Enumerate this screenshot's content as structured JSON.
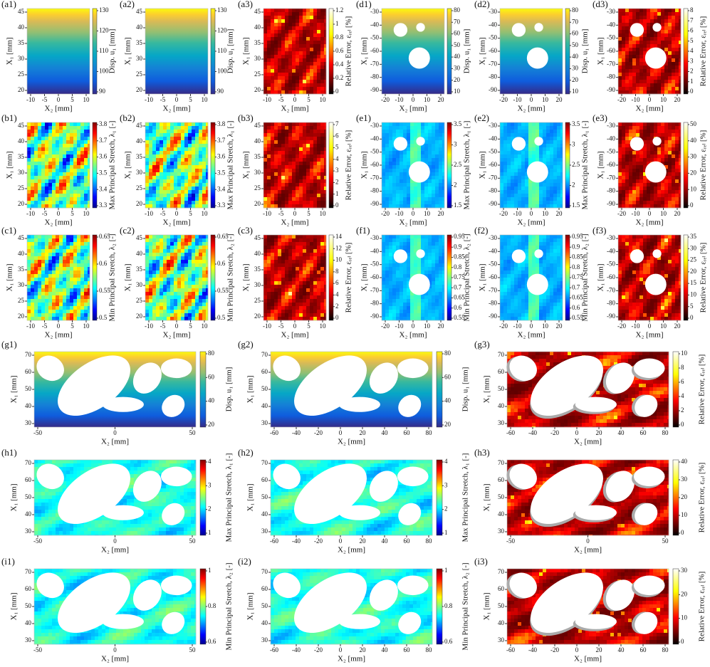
{
  "panels": [
    {
      "label": "(a1)",
      "xlabel": "X₂ [mm]",
      "ylabel": "X₁ [mm]",
      "xticks": [
        -10,
        -5,
        0,
        5,
        10
      ],
      "yticks": [
        20,
        25,
        30,
        35,
        40,
        45
      ],
      "colorbar": {
        "label": "Disp. u₁ [mm]",
        "ticks": [
          90,
          100,
          110,
          120,
          130
        ]
      }
    },
    {
      "label": "(a2)",
      "xlabel": "X₂ [mm]",
      "ylabel": "X₁ [mm]",
      "xticks": [
        -10,
        -5,
        0,
        5,
        10
      ],
      "yticks": [
        20,
        25,
        30,
        35,
        40,
        45
      ],
      "colorbar": {
        "label": "Disp. u₁ [mm]",
        "ticks": [
          90,
          100,
          110,
          120,
          130
        ]
      }
    },
    {
      "label": "(a3)",
      "xlabel": "X₂ [mm]",
      "ylabel": "X₁ [mm]",
      "xticks": [
        -10,
        -5,
        0,
        5,
        10
      ],
      "yticks": [
        20,
        25,
        30,
        35,
        40,
        45
      ],
      "colorbar": {
        "label": "Relative Error, εᵣₑₗ [%]",
        "ticks": [
          0,
          0.2,
          0.4,
          0.6,
          0.8,
          1,
          1.2
        ]
      }
    },
    {
      "label": "(d1)",
      "xlabel": "X₂ [mm]",
      "ylabel": "X₁ [mm]",
      "xticks": [
        -20,
        -10,
        0,
        10,
        20
      ],
      "yticks": [
        -90,
        -80,
        -70,
        -60,
        -50,
        -40,
        -30
      ],
      "colorbar": {
        "label": "Disp. u₁ [mm]",
        "ticks": [
          10,
          20,
          30,
          40,
          50,
          60,
          70,
          80
        ]
      }
    },
    {
      "label": "(d2)",
      "xlabel": "X₂ [mm]",
      "ylabel": "X₁ [mm]",
      "xticks": [
        -20,
        -10,
        0,
        10,
        20
      ],
      "yticks": [
        -90,
        -80,
        -70,
        -60,
        -50,
        -40,
        -30
      ],
      "colorbar": {
        "label": "Disp. u₁ [mm]",
        "ticks": [
          10,
          20,
          30,
          40,
          50,
          60,
          70,
          80
        ]
      }
    },
    {
      "label": "(d3)",
      "xlabel": "X₂ [mm]",
      "ylabel": "X₁ [mm]",
      "xticks": [
        -20,
        -10,
        0,
        10,
        20
      ],
      "yticks": [
        -90,
        -80,
        -70,
        -60,
        -50,
        -40,
        -30
      ],
      "colorbar": {
        "label": "Relative Error, εᵣₑₗ [%]",
        "ticks": [
          0,
          1,
          2,
          3,
          4,
          5,
          6,
          7,
          8
        ]
      }
    },
    {
      "label": "(b1)",
      "xlabel": "X₂ [mm]",
      "ylabel": "X₁ [mm]",
      "xticks": [
        -10,
        -5,
        0,
        5,
        10
      ],
      "yticks": [
        20,
        25,
        30,
        35,
        40,
        45
      ],
      "colorbar": {
        "label": "Max Principal Stretch, λ₁ [-]",
        "ticks": [
          3.3,
          3.4,
          3.5,
          3.6,
          3.7,
          3.8
        ]
      }
    },
    {
      "label": "(b2)",
      "xlabel": "X₂ [mm]",
      "ylabel": "X₁ [mm]",
      "xticks": [
        -10,
        -5,
        0,
        5,
        10
      ],
      "yticks": [
        20,
        25,
        30,
        35,
        40,
        45
      ],
      "colorbar": {
        "label": "Max Principal Stretch, λ₁ [-]",
        "ticks": [
          3.3,
          3.4,
          3.5,
          3.6,
          3.7,
          3.8
        ]
      }
    },
    {
      "label": "(b3)",
      "xlabel": "X₂ [mm]",
      "ylabel": "X₁ [mm]",
      "xticks": [
        -10,
        -5,
        0,
        5,
        10
      ],
      "yticks": [
        20,
        25,
        30,
        35,
        40,
        45
      ],
      "colorbar": {
        "label": "Relative Error, εᵣₑₗ [%]",
        "ticks": [
          0,
          1,
          2,
          3,
          4,
          5,
          6,
          7
        ]
      }
    },
    {
      "label": "(e1)",
      "xlabel": "X₂ [mm]",
      "ylabel": "X₁ [mm]",
      "xticks": [
        -20,
        -10,
        0,
        10,
        20
      ],
      "yticks": [
        -90,
        -80,
        -70,
        -60,
        -50,
        -40,
        -30
      ],
      "colorbar": {
        "label": "Max Principal Stretch, λ₁ [-]",
        "ticks": [
          1.5,
          2,
          2.5,
          3,
          3.5
        ]
      }
    },
    {
      "label": "(e2)",
      "xlabel": "X₂ [mm]",
      "ylabel": "X₁ [mm]",
      "xticks": [
        -20,
        -10,
        0,
        10,
        20
      ],
      "yticks": [
        -90,
        -80,
        -70,
        -60,
        -50,
        -40,
        -30
      ],
      "colorbar": {
        "label": "Max Principal Stretch, λ₁ [-]",
        "ticks": [
          1.5,
          2,
          2.5,
          3,
          3.5
        ]
      }
    },
    {
      "label": "(e3)",
      "xlabel": "X₂ [mm]",
      "ylabel": "X₁ [mm]",
      "xticks": [
        -20,
        -10,
        0,
        10,
        20
      ],
      "yticks": [
        -90,
        -80,
        -70,
        -60,
        -50,
        -40,
        -30
      ],
      "colorbar": {
        "label": "Relative Error, εᵣₑₗ [%]",
        "ticks": [
          0,
          10,
          20,
          30,
          40,
          50
        ]
      }
    },
    {
      "label": "(c1)",
      "xlabel": "X₂ [mm]",
      "ylabel": "X₁ [mm]",
      "xticks": [
        -10,
        -5,
        0,
        5,
        10
      ],
      "yticks": [
        20,
        25,
        30,
        35,
        40,
        45
      ],
      "colorbar": {
        "label": "Min Principal Stretch, λ₂ [-]",
        "ticks": [
          0.5,
          0.55,
          0.6,
          0.65
        ]
      }
    },
    {
      "label": "(c2)",
      "xlabel": "X₂ [mm]",
      "ylabel": "X₁ [mm]",
      "xticks": [
        -10,
        -5,
        0,
        5,
        10
      ],
      "yticks": [
        20,
        25,
        30,
        35,
        40,
        45
      ],
      "colorbar": {
        "label": "Min Principal Stretch, λ₂ [-]",
        "ticks": [
          0.5,
          0.55,
          0.6,
          0.65
        ]
      }
    },
    {
      "label": "(c3)",
      "xlabel": "X₂ [mm]",
      "ylabel": "X₁ [mm]",
      "xticks": [
        -10,
        -5,
        0,
        5,
        10
      ],
      "yticks": [
        20,
        25,
        30,
        35,
        40,
        45
      ],
      "colorbar": {
        "label": "Relative Error, εᵣₑₗ [%]",
        "ticks": [
          0,
          2,
          4,
          6,
          8,
          10,
          12,
          14
        ]
      }
    },
    {
      "label": "(f1)",
      "xlabel": "X₂ [mm]",
      "ylabel": "X₁ [mm]",
      "xticks": [
        -20,
        -10,
        0,
        10,
        20
      ],
      "yticks": [
        -90,
        -80,
        -70,
        -60,
        -50,
        -40,
        -30
      ],
      "colorbar": {
        "label": "Min Principal Stretch, λ₂ [-]",
        "ticks": [
          0.55,
          0.6,
          0.65,
          0.7,
          0.75,
          0.8,
          0.85,
          0.9,
          0.95
        ]
      }
    },
    {
      "label": "(f2)",
      "xlabel": "X₂ [mm]",
      "ylabel": "X₁ [mm]",
      "xticks": [
        -20,
        -10,
        0,
        10,
        20
      ],
      "yticks": [
        -90,
        -80,
        -70,
        -60,
        -50,
        -40,
        -30
      ],
      "colorbar": {
        "label": "Min Principal Stretch, λ₂ [-]",
        "ticks": [
          0.55,
          0.6,
          0.65,
          0.7,
          0.75,
          0.8,
          0.85,
          0.9,
          0.95
        ]
      }
    },
    {
      "label": "(f3)",
      "xlabel": "X₂ [mm]",
      "ylabel": "X₁ [mm]",
      "xticks": [
        -20,
        -10,
        0,
        10,
        20
      ],
      "yticks": [
        -90,
        -80,
        -70,
        -60,
        -50,
        -40,
        -30
      ],
      "colorbar": {
        "label": "Relative Error, εᵣₑₗ [%]",
        "ticks": [
          0,
          5,
          10,
          15,
          20,
          25,
          30,
          35
        ]
      }
    },
    {
      "label": "(g1)",
      "xlabel": "X₂ [mm]",
      "ylabel": "X₁ [mm]",
      "xticks": [
        -50,
        0,
        50
      ],
      "yticks": [
        30,
        40,
        50,
        60,
        70
      ],
      "colorbar": {
        "label": "Disp. u₁ [mm]",
        "ticks": [
          20,
          40,
          60,
          80
        ]
      }
    },
    {
      "label": "(g2)",
      "xlabel": "X₂ [mm]",
      "ylabel": "X₁ [mm]",
      "xticks": [
        -60,
        -40,
        -20,
        0,
        20,
        40,
        60,
        80
      ],
      "yticks": [
        30,
        40,
        50,
        60,
        70
      ],
      "colorbar": {
        "label": "Disp. u₁ [mm]",
        "ticks": [
          20,
          40,
          60,
          80
        ]
      }
    },
    {
      "label": "(g3)",
      "xlabel": "X₂ [mm]",
      "ylabel": "X₁ [mm]",
      "xticks": [
        -60,
        -40,
        -20,
        0,
        20,
        40,
        60,
        80
      ],
      "yticks": [
        30,
        40,
        50,
        60,
        70
      ],
      "colorbar": {
        "label": "Relative Error, εᵣₑₗ [%]",
        "ticks": [
          0,
          2,
          4,
          6,
          8,
          10
        ]
      }
    },
    {
      "label": "(h1)",
      "xlabel": "X₂ [mm]",
      "ylabel": "X₁ [mm]",
      "xticks": [
        -50,
        0,
        50
      ],
      "yticks": [
        30,
        40,
        50,
        60,
        70
      ],
      "colorbar": {
        "label": "Max Principal Stretch, λ₁ [-]",
        "ticks": [
          1,
          2,
          3,
          4
        ]
      }
    },
    {
      "label": "(h2)",
      "xlabel": "X₂ [mm]",
      "ylabel": "X₁ [mm]",
      "xticks": [
        -60,
        -40,
        -20,
        0,
        20,
        40,
        60,
        80
      ],
      "yticks": [
        30,
        40,
        50,
        60,
        70
      ],
      "colorbar": {
        "label": "Max Principal Stretch, λ₁ [-]",
        "ticks": [
          1,
          2,
          3,
          4
        ]
      }
    },
    {
      "label": "(h3)",
      "xlabel": "X₂ [mm]",
      "ylabel": "X₁ [mm]",
      "xticks": [
        -50,
        0,
        50
      ],
      "yticks": [
        30,
        40,
        50,
        60,
        70
      ],
      "colorbar": {
        "label": "Relative Error, εᵣₑₗ [%]",
        "ticks": [
          0,
          10,
          20,
          30,
          40
        ]
      }
    },
    {
      "label": "(i1)",
      "xlabel": "X₂ [mm]",
      "ylabel": "X₁ [mm]",
      "xticks": [
        -50,
        0,
        50
      ],
      "yticks": [
        30,
        40,
        50,
        60,
        70
      ],
      "colorbar": {
        "label": "Min Principal Stretch, λ₂ [-]",
        "ticks": [
          0.6,
          0.8,
          1
        ]
      }
    },
    {
      "label": "(i2)",
      "xlabel": "X₂ [mm]",
      "ylabel": "X₁ [mm]",
      "xticks": [
        -60,
        -40,
        -20,
        0,
        20,
        40,
        60,
        80
      ],
      "yticks": [
        30,
        40,
        50,
        60,
        70
      ],
      "colorbar": {
        "label": "Min Principal Stretch, λ₂ [-]",
        "ticks": [
          0.6,
          0.8,
          1
        ]
      }
    },
    {
      "label": "(i3)",
      "xlabel": "X₂ [mm]",
      "ylabel": "X₁ [mm]",
      "xticks": [
        -60,
        -40,
        -20,
        0,
        20,
        40,
        60,
        80
      ],
      "yticks": [
        30,
        40,
        50,
        60,
        70
      ],
      "colorbar": {
        "label": "Relative Error, εᵣₑₗ [%]",
        "ticks": [
          0,
          10,
          20,
          30
        ]
      }
    }
  ]
}
